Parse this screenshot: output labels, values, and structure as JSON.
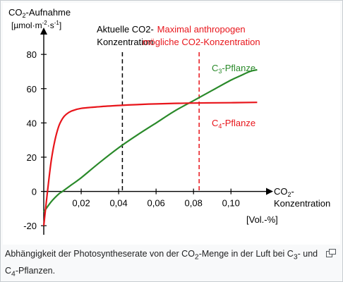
{
  "caption": {
    "part1": "Abhängigkeit der Photosyntheserate von der CO",
    "sub1": "2",
    "part2": "-Menge in der Luft bei C",
    "sub2": "3",
    "part3": "- und C",
    "sub3": "4",
    "part4": "-Pflanzen."
  },
  "icons": {
    "enlarge": "enlarge-icon"
  },
  "colors": {
    "c3": "#2a8a2a",
    "c4": "#e8151b",
    "annotation_red": "#e8151b",
    "axis": "#000000"
  },
  "chart_data": {
    "type": "line",
    "ylabel": {
      "line1_prefix": "CO",
      "line1_sub": "2",
      "line1_suffix": "-Aufnahme",
      "line2_prefix": "[µmol·m",
      "line2_sup1": "-2",
      "line2_mid": "·s",
      "line2_sup2": "-1",
      "line2_suffix": "]"
    },
    "xlabel": {
      "line1_prefix": "CO",
      "line1_sub": "2",
      "line1_suffix": "-",
      "line2": "Konzentration",
      "unit": "[Vol.-%]"
    },
    "xlim": [
      0,
      0.118
    ],
    "ylim": [
      -22,
      92
    ],
    "xticks": [
      0.02,
      0.04,
      0.06,
      0.08,
      0.1
    ],
    "xtick_labels": [
      "0,02",
      "0,04",
      "0,06",
      "0,08",
      "0,10"
    ],
    "yticks": [
      -20,
      0,
      20,
      40,
      60,
      80
    ],
    "ytick_labels": [
      "-20",
      "0",
      "20",
      "40",
      "60",
      "80"
    ],
    "series": [
      {
        "name_prefix": "C",
        "name_sub": "3",
        "name_suffix": "-Pflanze",
        "color": "#2a8a2a",
        "x": [
          0,
          0.004,
          0.008,
          0.01,
          0.015,
          0.02,
          0.03,
          0.04,
          0.05,
          0.06,
          0.07,
          0.08,
          0.09,
          0.1,
          0.105,
          0.11,
          0.114
        ],
        "y": [
          -12,
          -6,
          -1.5,
          0,
          4,
          8,
          17,
          25.5,
          33,
          40,
          47,
          53,
          59,
          65,
          67.5,
          70,
          71
        ]
      },
      {
        "name_prefix": "C",
        "name_sub": "4",
        "name_suffix": "-Pflanze",
        "color": "#e8151b",
        "x": [
          0,
          0.002,
          0.004,
          0.006,
          0.008,
          0.01,
          0.012,
          0.015,
          0.02,
          0.03,
          0.04,
          0.05,
          0.06,
          0.08,
          0.1,
          0.114
        ],
        "y": [
          -20,
          0,
          18,
          30,
          38,
          42.5,
          45,
          47,
          48.5,
          49.5,
          50.2,
          50.7,
          51.1,
          51.6,
          51.8,
          52
        ]
      }
    ],
    "annotations": [
      {
        "x": 0.042,
        "line1": "Aktuelle CO2-",
        "line2": "Konzentration",
        "color": "#000000"
      },
      {
        "x": 0.083,
        "line1": "Maximal anthropogen",
        "line2": "mögliche CO2-Konzentration",
        "color": "#e8151b"
      }
    ],
    "grid": false,
    "legend": "inline"
  }
}
